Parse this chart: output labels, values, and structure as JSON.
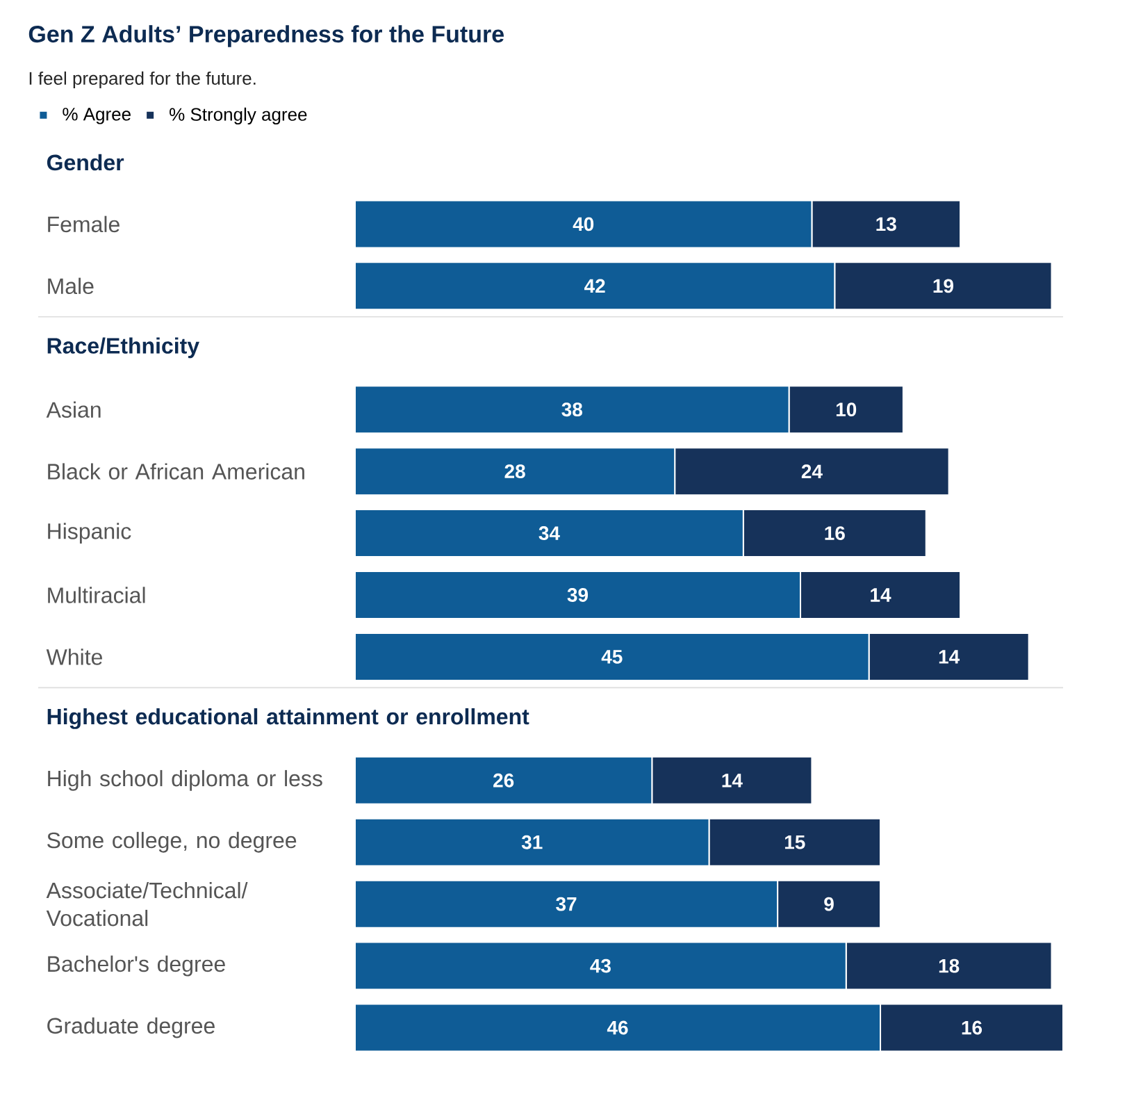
{
  "chart_data": {
    "type": "bar",
    "orientation": "horizontal",
    "stacked": true,
    "data_labels": true,
    "legend": "top left",
    "tick_labels": "y",
    "title": "Gen Z Adults’ Preparedness for the Future",
    "subtitle": "I feel prepared for the future.",
    "categories": [
      "Gender",
      "Female",
      "Male",
      "Race/Ethnicity",
      "Asian",
      "Black or African American",
      "Hispanic",
      "Multiracial",
      "White",
      "Highest educational attainment or enrollment",
      "High school diploma or less",
      "Some college, no degree",
      "Associate/Technical/ Vocational",
      "Bachelor's degree",
      "Graduate degree"
    ],
    "series": [
      {
        "name": "% Agree",
        "color": "#0f5c96",
        "values": [
          null,
          40,
          42,
          null,
          38,
          28,
          34,
          39,
          45,
          null,
          26,
          31,
          37,
          43,
          46
        ]
      },
      {
        "name": "% Strongly agree",
        "color": "#16325a",
        "values": [
          null,
          13,
          19,
          null,
          10,
          24,
          16,
          14,
          14,
          null,
          14,
          15,
          9,
          18,
          16
        ]
      }
    ]
  }
}
